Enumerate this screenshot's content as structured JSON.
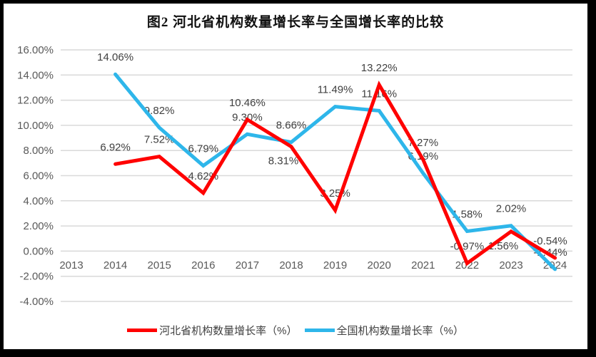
{
  "chart_data": {
    "type": "line",
    "title": "图2 河北省机构数量增长率与全国增长率的比较",
    "categories": [
      "2013",
      "2014",
      "2015",
      "2016",
      "2017",
      "2018",
      "2019",
      "2020",
      "2021",
      "2022",
      "2023",
      "2024"
    ],
    "y_tick_labels": [
      "16.00%",
      "14.00%",
      "12.00%",
      "10.00%",
      "8.00%",
      "6.00%",
      "4.00%",
      "2.00%",
      "0.00%",
      "-2.00%",
      "-4.00%"
    ],
    "ylim": [
      -4,
      16
    ],
    "grid": true,
    "legend_position": "bottom",
    "series": [
      {
        "name": "河北省机构数量增长率（%）",
        "color": "#FF0000",
        "values": [
          null,
          6.92,
          7.52,
          4.62,
          10.46,
          8.31,
          3.25,
          13.22,
          7.27,
          -0.97,
          1.56,
          -0.54
        ],
        "label_placement": [
          null,
          "above",
          "above",
          "above",
          "above",
          "below",
          "above",
          "above",
          "above",
          "above",
          "below",
          "above"
        ]
      },
      {
        "name": "全国机构数量增长率（%）",
        "color": "#2EB6EA",
        "values": [
          null,
          14.06,
          9.82,
          6.79,
          9.3,
          8.66,
          11.49,
          11.16,
          6.19,
          1.58,
          2.02,
          -1.44
        ],
        "label_placement": [
          null,
          "above",
          "above",
          "above",
          "above",
          "above",
          "above",
          "above",
          "above",
          "above",
          "above",
          "above"
        ]
      }
    ],
    "colors": {
      "gridline": "#D9D9D9",
      "axis_text": "#595959",
      "data_label_text": "#404040",
      "frame_border": "#000000"
    }
  }
}
